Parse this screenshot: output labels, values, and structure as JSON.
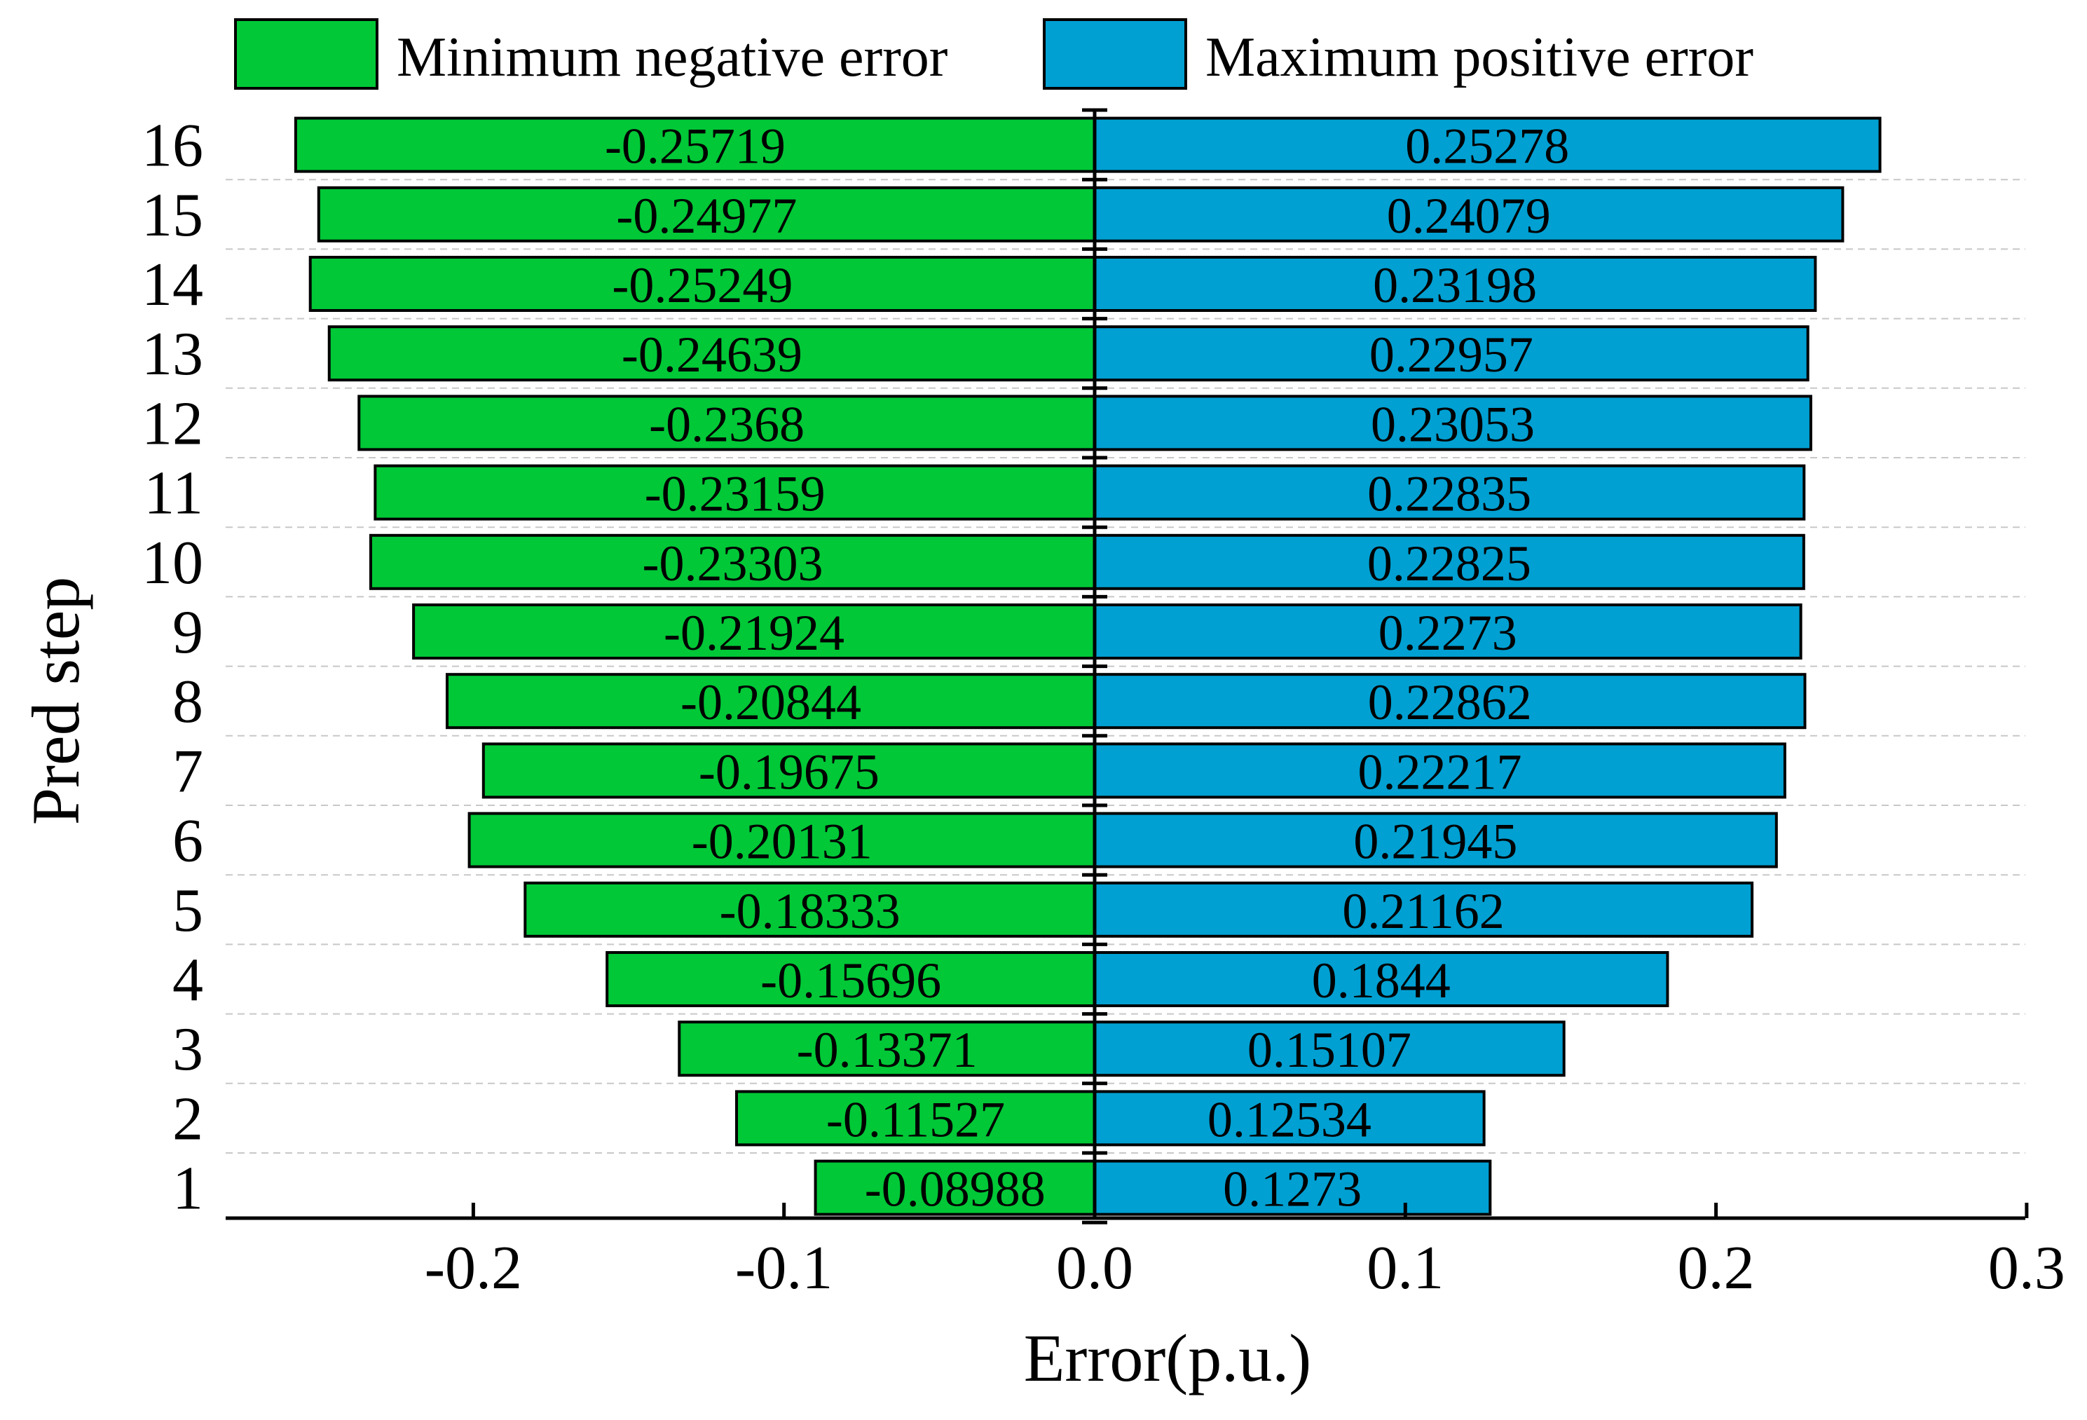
{
  "chart_data": {
    "type": "bar",
    "orientation": "horizontal",
    "title": "",
    "xlabel": "Error(p.u.)",
    "ylabel": "Pred step",
    "categories": [
      "1",
      "2",
      "3",
      "4",
      "5",
      "6",
      "7",
      "8",
      "9",
      "10",
      "11",
      "12",
      "13",
      "14",
      "15",
      "16"
    ],
    "series": [
      {
        "name": "Minimum negative error",
        "color": "#00c837",
        "values": [
          -0.08988,
          -0.11527,
          -0.13371,
          -0.15696,
          -0.18333,
          -0.20131,
          -0.19675,
          -0.20844,
          -0.21924,
          -0.23303,
          -0.23159,
          -0.2368,
          -0.24639,
          -0.25249,
          -0.24977,
          -0.25719
        ],
        "labels": [
          "-0.08988",
          "-0.11527",
          "-0.13371",
          "-0.15696",
          "-0.18333",
          "-0.20131",
          "-0.19675",
          "-0.20844",
          "-0.21924",
          "-0.23303",
          "-0.23159",
          "-0.2368",
          "-0.24639",
          "-0.25249",
          "-0.24977",
          "-0.25719"
        ]
      },
      {
        "name": "Maximum positive error",
        "color": "#00a0d2",
        "values": [
          0.1273,
          0.12534,
          0.15107,
          0.1844,
          0.21162,
          0.21945,
          0.22217,
          0.22862,
          0.2273,
          0.22825,
          0.22835,
          0.23053,
          0.22957,
          0.23198,
          0.24079,
          0.25278
        ],
        "labels": [
          "0.1273",
          "0.12534",
          "0.15107",
          "0.1844",
          "0.21162",
          "0.21945",
          "0.22217",
          "0.22862",
          "0.2273",
          "0.22825",
          "0.22835",
          "0.23053",
          "0.22957",
          "0.23198",
          "0.24079",
          "0.25278"
        ]
      }
    ],
    "xlim": [
      -0.28,
      0.3
    ],
    "xticks": [
      -0.2,
      -0.1,
      0.0,
      0.1,
      0.2,
      0.3
    ],
    "xtick_labels": [
      "-0.2",
      "-0.1",
      "0.0",
      "0.1",
      "0.2",
      "0.3"
    ],
    "grid": "horizontal dashed",
    "legend": "top"
  }
}
